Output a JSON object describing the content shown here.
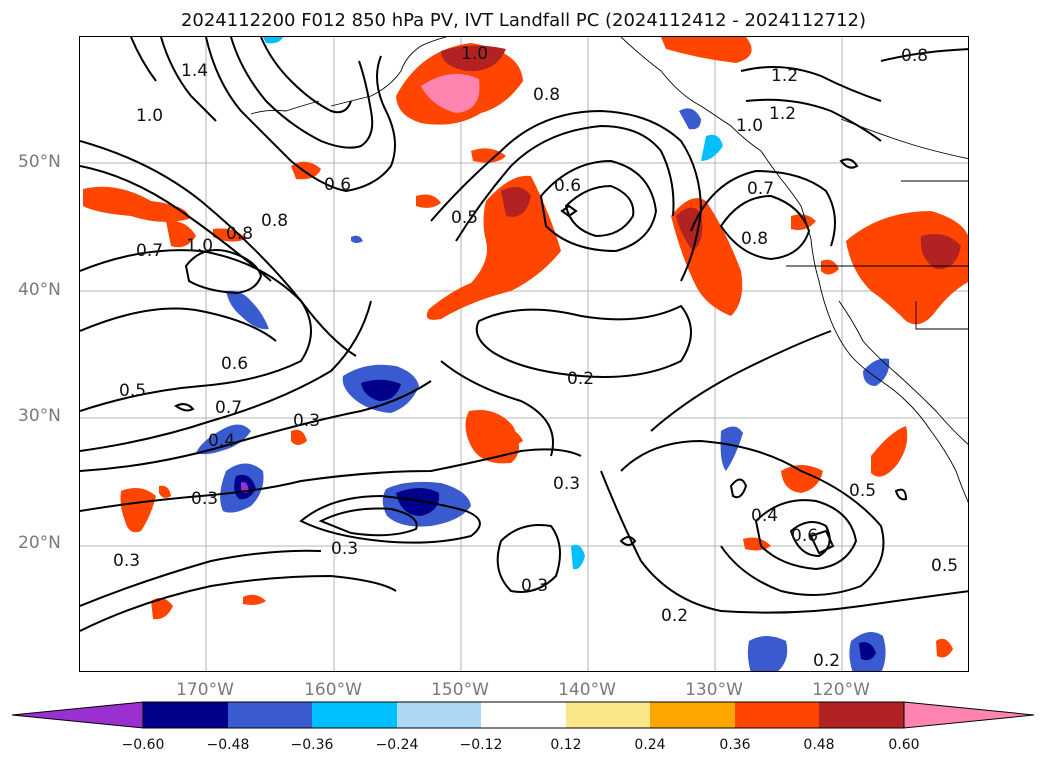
{
  "title": "2024112200 F012 850 hPa PV, IVT Landfall PC (2024112412 - 2024112712)",
  "lat_labels": [
    "50°N",
    "40°N",
    "30°N",
    "20°N"
  ],
  "lon_labels": [
    "170°W",
    "160°W",
    "150°W",
    "140°W",
    "130°W",
    "120°W"
  ],
  "contour_labels": [
    "0.2",
    "0.2",
    "0.2",
    "0.3",
    "0.3",
    "0.3",
    "0.3",
    "0.3",
    "0.3",
    "0.4",
    "0.4",
    "0.5",
    "0.5",
    "0.5",
    "0.5",
    "0.6",
    "0.6",
    "0.6",
    "0.6",
    "0.7",
    "0.7",
    "0.7",
    "0.8",
    "0.8",
    "0.8",
    "0.8",
    "0.8",
    "1.0",
    "1.0",
    "1.0",
    "1.0",
    "1.2",
    "1.2",
    "1.4"
  ],
  "colorbar": {
    "ticks": [
      "−0.60",
      "−0.48",
      "−0.36",
      "−0.24",
      "−0.12",
      "0.12",
      "0.24",
      "0.36",
      "0.48",
      "0.60"
    ],
    "colors": {
      "lt_-0.60": "#9b30d0",
      "-0.60_-0.48": "#00008b",
      "-0.48_-0.36": "#3a5bd0",
      "-0.36_-0.24": "#00bfff",
      "-0.24_-0.12": "#add8f5",
      "-0.12_0.12": "#ffffff",
      "0.12_0.24": "#fce68a",
      "0.24_0.36": "#ffa500",
      "0.36_0.48": "#ff4500",
      "0.48_0.60": "#b22222",
      "gt_0.60": "#ff85b0"
    }
  }
}
